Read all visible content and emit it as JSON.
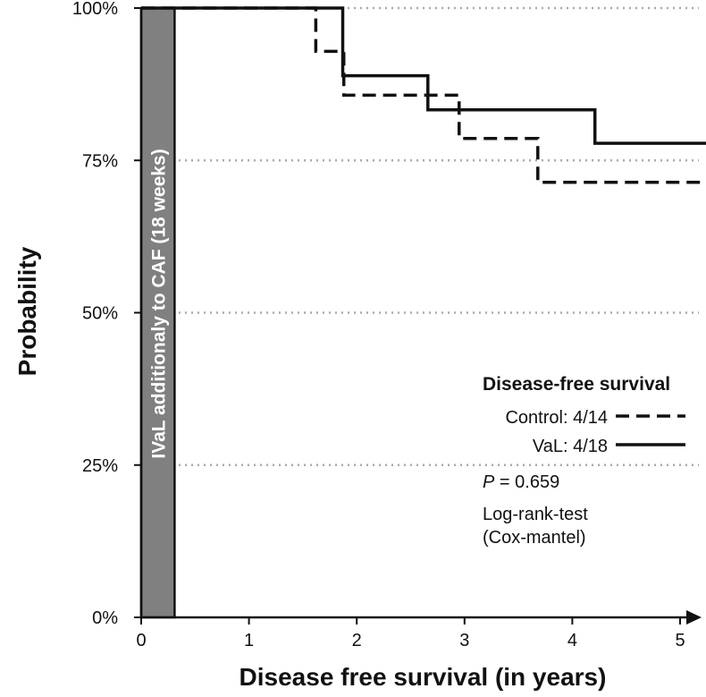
{
  "chart_data": {
    "type": "line",
    "subtype": "kaplan-meier-step",
    "xlabel": "Disease free survival (in years)",
    "ylabel": "Probability",
    "xlim": [
      0,
      5.25
    ],
    "ylim": [
      0,
      100
    ],
    "x_ticks": [
      {
        "value": 0,
        "label": "0"
      },
      {
        "value": 1,
        "label": "1"
      },
      {
        "value": 2,
        "label": "2"
      },
      {
        "value": 3,
        "label": "3"
      },
      {
        "value": 4,
        "label": "4"
      },
      {
        "value": 5,
        "label": "5"
      }
    ],
    "y_ticks": [
      {
        "value": 0,
        "label": "0%"
      },
      {
        "value": 25,
        "label": "25%"
      },
      {
        "value": 50,
        "label": "50%"
      },
      {
        "value": 75,
        "label": "75%"
      },
      {
        "value": 100,
        "label": "100%"
      }
    ],
    "grid": {
      "horizontal": true,
      "vertical": false,
      "lines_at": [
        25,
        50,
        75,
        100
      ]
    },
    "treatment_band": {
      "x_start": 0,
      "x_end": 0.31,
      "label": "IVaL additionaly to CAF (18 weeks)",
      "color": "#808080"
    },
    "series": [
      {
        "name": "VaL: 4/18",
        "line_style": "solid",
        "steps": [
          [
            0,
            100
          ],
          [
            1.87,
            88.9
          ],
          [
            2.66,
            83.3
          ],
          [
            4.21,
            77.8
          ],
          [
            5.25,
            77.8
          ]
        ]
      },
      {
        "name": "Control: 4/14",
        "line_style": "dashed",
        "steps": [
          [
            0,
            100
          ],
          [
            1.62,
            92.9
          ],
          [
            1.88,
            85.7
          ],
          [
            2.95,
            78.6
          ],
          [
            3.68,
            71.4
          ],
          [
            5.25,
            71.4
          ]
        ]
      }
    ],
    "legend": {
      "title": "Disease-free survival",
      "position": "lower-right",
      "entries": [
        {
          "label": "Control: 4/14",
          "line_style": "dashed"
        },
        {
          "label": "VaL: 4/18",
          "line_style": "solid"
        }
      ]
    },
    "annotations": {
      "p_label": "P",
      "p_value": " = 0.659",
      "test_line1": "Log-rank-test",
      "test_line2": "(Cox-mantel)"
    }
  }
}
